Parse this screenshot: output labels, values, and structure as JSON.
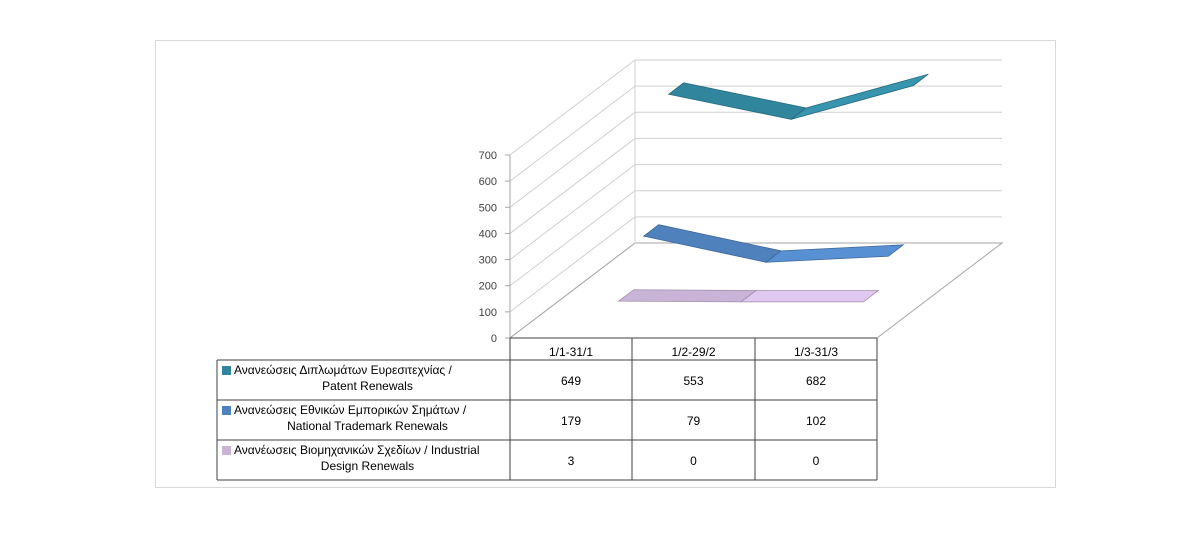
{
  "chart_data": {
    "type": "line",
    "title": "",
    "xlabel": "",
    "ylabel": "",
    "ylim": [
      0,
      700
    ],
    "yticks": [
      0,
      100,
      200,
      300,
      400,
      500,
      600,
      700
    ],
    "grid": true,
    "legend": "table-left",
    "categories": [
      "1/1-31/1",
      "1/2-29/2",
      "1/3-31/3"
    ],
    "series": [
      {
        "name_line1": "Ανανεώσεις Διπλωμάτων Ευρεσιτεχνίας  /",
        "name_line2": "Patent Renewals",
        "values": [
          649,
          553,
          682
        ],
        "color": "#31859c"
      },
      {
        "name_line1": "Ανανεώσεις Εθνικών Εμπορικών Σημάτων /",
        "name_line2": "National Trademark Renewals",
        "values": [
          179,
          79,
          102
        ],
        "color": "#4f81bd"
      },
      {
        "name_line1": "Ανανέωσεις Βιομηχανικών Σχεδίων / Industrial",
        "name_line2": "Design Renewals",
        "values": [
          3,
          0,
          0
        ],
        "color": "#c9b3d6"
      }
    ]
  }
}
